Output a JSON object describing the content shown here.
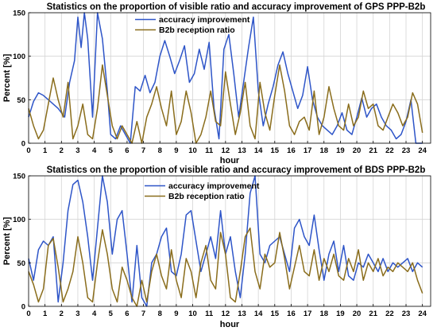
{
  "chart_data": [
    {
      "type": "line",
      "title": "Statistics on the proportion of visible ratio and accuracy improvement of GPS PPP-B2b",
      "xlabel": "hour",
      "ylabel": "Percent [%]",
      "xlim": [
        0,
        24.5
      ],
      "ylim": [
        0,
        150
      ],
      "xticks": [
        0,
        1,
        2,
        3,
        4,
        5,
        6,
        7,
        8,
        9,
        10,
        11,
        12,
        13,
        14,
        15,
        16,
        17,
        18,
        19,
        20,
        21,
        22,
        23,
        24
      ],
      "yticks": [
        0,
        50,
        100,
        150
      ],
      "grid": true,
      "legend": "top-center",
      "series": [
        {
          "name": "accuracy improvement",
          "color": "#2e55c8",
          "x": [
            0,
            0.3,
            0.6,
            0.9,
            1.2,
            1.5,
            1.8,
            2.2,
            2.5,
            2.8,
            3.0,
            3.2,
            3.4,
            3.6,
            3.9,
            4.2,
            4.5,
            4.8,
            5.0,
            5.3,
            5.6,
            5.9,
            6.2,
            6.5,
            6.8,
            7.1,
            7.4,
            7.7,
            8.0,
            8.3,
            8.6,
            8.9,
            9.2,
            9.5,
            9.8,
            10.1,
            10.4,
            10.7,
            11.0,
            11.3,
            11.6,
            11.9,
            12.2,
            12.5,
            12.8,
            13.1,
            13.4,
            13.7,
            14.0,
            14.3,
            14.6,
            14.9,
            15.2,
            15.5,
            15.8,
            16.1,
            16.4,
            16.7,
            17.0,
            17.3,
            17.6,
            17.9,
            18.2,
            18.5,
            18.8,
            19.1,
            19.4,
            19.7,
            20.0,
            20.3,
            20.6,
            20.9,
            21.2,
            21.5,
            21.8,
            22.1,
            22.4,
            22.7,
            23.0,
            23.3,
            23.6,
            24.0
          ],
          "values": [
            30,
            48,
            58,
            55,
            50,
            45,
            40,
            30,
            70,
            95,
            145,
            110,
            150,
            120,
            30,
            150,
            120,
            60,
            10,
            5,
            20,
            10,
            0,
            65,
            60,
            78,
            58,
            70,
            100,
            118,
            100,
            80,
            95,
            112,
            70,
            80,
            108,
            85,
            116,
            40,
            5,
            108,
            125,
            80,
            30,
            70,
            110,
            145,
            60,
            20,
            45,
            65,
            90,
            105,
            80,
            60,
            40,
            55,
            88,
            50,
            30,
            20,
            15,
            10,
            20,
            35,
            15,
            10,
            30,
            52,
            30,
            40,
            45,
            30,
            20,
            15,
            5,
            10,
            25,
            50,
            0,
            0
          ]
        },
        {
          "name": "B2b reception ratio",
          "color": "#8a6d1c",
          "x": [
            0,
            0.3,
            0.6,
            0.9,
            1.2,
            1.5,
            1.8,
            2.1,
            2.4,
            2.7,
            3.0,
            3.3,
            3.6,
            3.9,
            4.2,
            4.5,
            4.8,
            5.1,
            5.4,
            5.7,
            6.0,
            6.3,
            6.6,
            6.9,
            7.2,
            7.5,
            7.8,
            8.1,
            8.4,
            8.7,
            9.0,
            9.3,
            9.6,
            9.9,
            10.2,
            10.5,
            10.8,
            11.1,
            11.4,
            11.7,
            12.0,
            12.3,
            12.6,
            12.9,
            13.2,
            13.5,
            13.8,
            14.1,
            14.4,
            14.7,
            15.0,
            15.3,
            15.6,
            15.9,
            16.2,
            16.5,
            16.8,
            17.1,
            17.4,
            17.7,
            18.0,
            18.3,
            18.6,
            18.9,
            19.2,
            19.5,
            19.8,
            20.1,
            20.4,
            20.7,
            21.0,
            21.3,
            21.6,
            21.9,
            22.2,
            22.5,
            22.8,
            23.1,
            23.4,
            23.7,
            24.0
          ],
          "values": [
            40,
            20,
            5,
            15,
            45,
            75,
            50,
            30,
            70,
            5,
            20,
            45,
            10,
            5,
            40,
            90,
            55,
            20,
            5,
            20,
            10,
            0,
            25,
            0,
            30,
            45,
            65,
            40,
            20,
            60,
            10,
            25,
            60,
            35,
            0,
            10,
            30,
            60,
            25,
            20,
            82,
            45,
            10,
            35,
            70,
            20,
            5,
            70,
            35,
            15,
            55,
            90,
            60,
            20,
            10,
            25,
            30,
            15,
            60,
            10,
            30,
            65,
            40,
            20,
            15,
            45,
            20,
            30,
            60,
            40,
            45,
            20,
            15,
            30,
            45,
            35,
            20,
            30,
            58,
            45,
            12
          ]
        }
      ]
    },
    {
      "type": "line",
      "title": "Statistics on the proportion of visible ratio and accuracy improvement of BDS PPP-B2b",
      "xlabel": "hour",
      "ylabel": "Percent [%]",
      "xlim": [
        0,
        24.5
      ],
      "ylim": [
        0,
        150
      ],
      "xticks": [
        0,
        1,
        2,
        3,
        4,
        5,
        6,
        7,
        8,
        9,
        10,
        11,
        12,
        13,
        14,
        15,
        16,
        17,
        18,
        19,
        20,
        21,
        22,
        23,
        24
      ],
      "yticks": [
        0,
        50,
        100,
        150
      ],
      "grid": true,
      "legend": "top-center",
      "series": [
        {
          "name": "accuracy improvement",
          "color": "#2e55c8",
          "x": [
            0,
            0.3,
            0.6,
            0.9,
            1.2,
            1.5,
            1.8,
            2.1,
            2.4,
            2.7,
            3.0,
            3.3,
            3.6,
            3.9,
            4.2,
            4.5,
            4.8,
            5.1,
            5.4,
            5.7,
            6.0,
            6.3,
            6.6,
            6.9,
            7.2,
            7.5,
            7.8,
            8.1,
            8.4,
            8.7,
            9.0,
            9.3,
            9.6,
            9.9,
            10.2,
            10.5,
            10.8,
            11.1,
            11.4,
            11.7,
            12.0,
            12.3,
            12.6,
            12.9,
            13.2,
            13.5,
            13.8,
            14.1,
            14.4,
            14.7,
            15.0,
            15.3,
            15.6,
            15.9,
            16.2,
            16.5,
            16.8,
            17.1,
            17.4,
            17.7,
            18.0,
            18.3,
            18.6,
            18.9,
            19.2,
            19.5,
            19.8,
            20.1,
            20.4,
            20.7,
            21.0,
            21.3,
            21.6,
            21.9,
            22.2,
            22.5,
            22.8,
            23.1,
            23.4,
            23.7,
            24.0
          ],
          "values": [
            55,
            30,
            65,
            75,
            70,
            80,
            5,
            50,
            110,
            140,
            145,
            120,
            80,
            30,
            90,
            150,
            120,
            60,
            100,
            110,
            60,
            5,
            70,
            10,
            0,
            50,
            60,
            80,
            90,
            40,
            35,
            60,
            105,
            110,
            75,
            40,
            60,
            80,
            55,
            110,
            60,
            80,
            40,
            10,
            60,
            130,
            150,
            60,
            50,
            70,
            75,
            80,
            60,
            40,
            90,
            100,
            80,
            70,
            105,
            65,
            30,
            60,
            75,
            40,
            70,
            35,
            30,
            50,
            45,
            60,
            50,
            40,
            55,
            40,
            50,
            45,
            50,
            55,
            40,
            50,
            45
          ]
        },
        {
          "name": "B2b reception ratio",
          "color": "#8a6d1c",
          "x": [
            0,
            0.3,
            0.6,
            0.9,
            1.2,
            1.5,
            1.8,
            2.1,
            2.4,
            2.7,
            3.0,
            3.3,
            3.6,
            3.9,
            4.2,
            4.5,
            4.8,
            5.1,
            5.4,
            5.7,
            6.0,
            6.3,
            6.6,
            6.9,
            7.2,
            7.5,
            7.8,
            8.1,
            8.4,
            8.7,
            9.0,
            9.3,
            9.6,
            9.9,
            10.2,
            10.5,
            10.8,
            11.1,
            11.4,
            11.7,
            12.0,
            12.3,
            12.6,
            12.9,
            13.2,
            13.5,
            13.8,
            14.1,
            14.4,
            14.7,
            15.0,
            15.3,
            15.6,
            15.9,
            16.2,
            16.5,
            16.8,
            17.1,
            17.4,
            17.7,
            18.0,
            18.3,
            18.6,
            18.9,
            19.2,
            19.5,
            19.8,
            20.1,
            20.4,
            20.7,
            21.0,
            21.3,
            21.6,
            21.9,
            22.2,
            22.5,
            22.8,
            23.1,
            23.4,
            23.7,
            24.0
          ],
          "values": [
            40,
            25,
            5,
            20,
            70,
            78,
            45,
            5,
            20,
            40,
            80,
            50,
            10,
            5,
            50,
            88,
            60,
            20,
            5,
            45,
            30,
            10,
            0,
            30,
            5,
            40,
            60,
            35,
            20,
            65,
            30,
            10,
            55,
            40,
            10,
            50,
            70,
            30,
            20,
            85,
            60,
            10,
            5,
            40,
            80,
            90,
            40,
            20,
            60,
            45,
            50,
            85,
            55,
            20,
            45,
            70,
            40,
            35,
            65,
            30,
            55,
            40,
            60,
            35,
            30,
            55,
            40,
            65,
            30,
            50,
            40,
            55,
            35,
            45,
            40,
            50,
            45,
            40,
            50,
            30,
            15
          ]
        }
      ]
    }
  ]
}
